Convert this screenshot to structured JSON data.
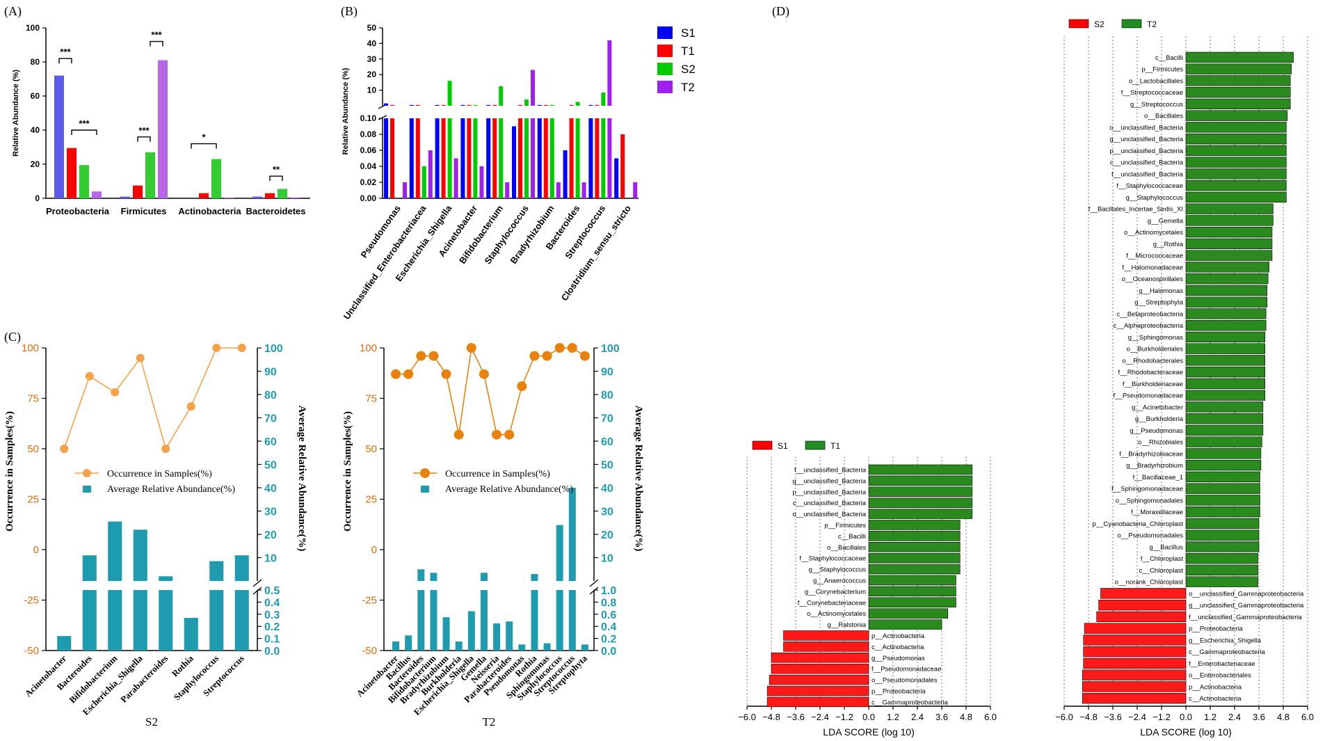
{
  "panels": {
    "a": "(A)",
    "b": "(B)",
    "c": "(C)",
    "d": "(D)"
  },
  "chart_data": [
    {
      "id": "A",
      "type": "bar",
      "ylabel": "Relative Abundance (%)",
      "ylim": [
        0,
        100
      ],
      "yticks": [
        0,
        20,
        40,
        60,
        80,
        100
      ],
      "categories": [
        "Proteobacteria",
        "Firmicutes",
        "Actinobacteria",
        "Bacteroidetes"
      ],
      "series": [
        {
          "name": "S1",
          "color": "#5b5bea",
          "values": [
            72,
            1,
            0,
            1
          ]
        },
        {
          "name": "T1",
          "color": "#ff0000",
          "values": [
            29.5,
            7.5,
            3,
            3
          ]
        },
        {
          "name": "S2",
          "color": "#33cc33",
          "values": [
            19.5,
            27,
            23,
            5.5
          ]
        },
        {
          "name": "T2",
          "color": "#b866e8",
          "values": [
            4,
            81,
            0.3,
            0.5
          ]
        }
      ],
      "significance": [
        {
          "category": "Proteobacteria",
          "pair": [
            "S1",
            "T1"
          ],
          "label": "***",
          "level": 82
        },
        {
          "category": "Proteobacteria",
          "pair": [
            "T1",
            "T2"
          ],
          "label": "***",
          "level": 40
        },
        {
          "category": "Firmicutes",
          "pair": [
            "T1",
            "S2"
          ],
          "label": "***",
          "level": 36
        },
        {
          "category": "Firmicutes",
          "pair": [
            "S2",
            "T2"
          ],
          "label": "***",
          "level": 92
        },
        {
          "category": "Actinobacteria",
          "pair": [
            "S1",
            "S2"
          ],
          "label": "*",
          "level": 32
        },
        {
          "category": "Bacteroidetes",
          "pair": [
            "T1",
            "S2"
          ],
          "label": "**",
          "level": 13
        }
      ]
    },
    {
      "id": "B",
      "type": "bar",
      "ylabel": "Relative Abundance (%)",
      "yticks_low": [
        0.0,
        0.02,
        0.04,
        0.06,
        0.08,
        0.1
      ],
      "yticks_high": [
        10,
        20,
        30,
        40,
        50
      ],
      "categories": [
        "Pseudomonas",
        "Unclassified_Enterobacteriacea",
        "Escherichia_Shigella",
        "Acinetobacter",
        "Bifidobacterium",
        "Staphylococcus",
        "Bradyrhizobium",
        "Bacteroides",
        "Streptococcus",
        "Clostridium_sensu_stricto"
      ],
      "legend": [
        "S1",
        "T1",
        "S2",
        "T2"
      ],
      "series": [
        {
          "name": "S1",
          "color": "#0000ff",
          "values": [
            1.5,
            0.5,
            0.5,
            0.5,
            0.5,
            0.09,
            0.5,
            0.06,
            0.5,
            0.05
          ]
        },
        {
          "name": "T1",
          "color": "#ff0000",
          "values": [
            0.5,
            0.5,
            0.5,
            0.5,
            0.5,
            0.5,
            0.5,
            0.5,
            0.5,
            0.08
          ]
        },
        {
          "name": "S2",
          "color": "#00cc00",
          "values": [
            0,
            0.04,
            16,
            0.5,
            12.5,
            4,
            0.5,
            2.5,
            8.5,
            0
          ]
        },
        {
          "name": "T2",
          "color": "#a020f0",
          "values": [
            0.02,
            0.06,
            0.05,
            0.04,
            0.02,
            23,
            0.02,
            0.02,
            42,
            0.02
          ]
        }
      ]
    },
    {
      "id": "C-S2",
      "type": "bar+line",
      "title": "S2",
      "ylabel_left": "Occurrence in Samples(%)",
      "ylabel_right": "Average Relative Abundance(%)",
      "left_ticks": [
        "100",
        "75",
        "50",
        "25",
        "0",
        "-25",
        "-50"
      ],
      "right_ticks_high": [
        "100",
        "90",
        "80",
        "70",
        "60",
        "50",
        "40",
        "30",
        "20",
        "10"
      ],
      "right_ticks_low": [
        "0.5",
        "0.4",
        "0.3",
        "0.2",
        "0.1",
        "0.0"
      ],
      "legend": [
        "Occurrence in Samples(%)",
        "Average Relative Abundance(%)"
      ],
      "categories": [
        "Acinetobacter",
        "Bacteroides",
        "Bifidobacterium",
        "Escherichia_Shigella",
        "Parabacteroides",
        "Rothia",
        "Staphylococcus",
        "Streptococcus"
      ],
      "occurrence": [
        50,
        86,
        78,
        95,
        50,
        71,
        100,
        100
      ],
      "abundance": [
        0.12,
        11,
        25.5,
        22,
        2,
        0.27,
        8.5,
        11
      ]
    },
    {
      "id": "C-T2",
      "type": "bar+line",
      "title": "T2",
      "ylabel_left": "Occurrence in Samples(%)",
      "ylabel_right": "Average Relative Abundance(%)",
      "left_ticks": [
        "100",
        "75",
        "50",
        "25",
        "0",
        "-25",
        "-50"
      ],
      "right_ticks_high": [
        "100",
        "90",
        "80",
        "70",
        "60",
        "50",
        "40",
        "30",
        "20",
        "10"
      ],
      "right_ticks_low": [
        "1.0",
        "0.8",
        "0.6",
        "0.4",
        "0.2",
        "0.0"
      ],
      "legend": [
        "Occurrence in Samples(%)",
        "Average Relative Abundance(%)"
      ],
      "categories": [
        "Acinetobacter",
        "Bacillus",
        "Bacteroides",
        "Bifidobacterium",
        "Bradyrhizobium",
        "Burkholderia",
        "Escherichia_Shigella",
        "Gemella",
        "Neisseria",
        "Parabacteroides",
        "Pseudomonas",
        "Rothia",
        "Sphingomonas",
        "Staphylococcus",
        "Streptococcus",
        "Streptophyta"
      ],
      "occurrence": [
        87,
        87,
        96,
        96,
        87,
        57,
        100,
        87,
        57,
        57,
        81,
        96,
        96,
        100,
        100,
        96
      ],
      "abundance": [
        0.15,
        0.25,
        5,
        3.5,
        0.55,
        0.15,
        0.65,
        3.5,
        0.45,
        0.48,
        0.1,
        3,
        0.12,
        24,
        40,
        0.1
      ]
    },
    {
      "id": "D-S1T1",
      "type": "hbar",
      "xlabel": "LDA SCORE (log 10)",
      "xlim": [
        -6,
        6
      ],
      "xticks": [
        "−6.0",
        "−4.8",
        "−3.6",
        "−2.4",
        "−1.2",
        "0.0",
        "1.2",
        "2.4",
        "3.6",
        "4.8",
        "6.0"
      ],
      "legend": [
        {
          "name": "S1",
          "color": "#ff0000"
        },
        {
          "name": "T1",
          "color": "#228b22"
        }
      ],
      "labels": [
        "f__unclassified_Bacteria",
        "g__unclassified_Bacteria",
        "p__unclassified_Bacteria",
        "c__unclassified_Bacteria",
        "o__unclassified_Bacteria",
        "p__Firmicutes",
        "c__Bacilli",
        "o__Bacillales",
        "f__Staphylococcaceae",
        "g__Staphylococcus",
        "g__Anaerococcus",
        "g__Corynebacterium",
        "f__Corynebacteriaceae",
        "o__Actinomycetales",
        "g__Ralstonia",
        "p__Actinobacteria",
        "c__Actinobacteria",
        "g__Pseudomonas",
        "f__Pseudomonadaceae",
        "o__Pseudomonadales",
        "p__Proteobacteria",
        "c__Gammaproteobacteria"
      ],
      "values": [
        5.1,
        5.1,
        5.1,
        5.1,
        5.1,
        4.5,
        4.5,
        4.5,
        4.5,
        4.5,
        4.3,
        4.3,
        4.3,
        3.9,
        3.6,
        -4.2,
        -4.2,
        -4.8,
        -4.8,
        -4.9,
        -5.0,
        -5.0
      ]
    },
    {
      "id": "D-S2T2",
      "type": "hbar",
      "xlabel": "LDA SCORE (log 10)",
      "xlim": [
        -6,
        6
      ],
      "xticks": [
        "−6.0",
        "−4.8",
        "−3.6",
        "−2.4",
        "−1.2",
        "0.0",
        "1.2",
        "2.4",
        "3.6",
        "4.8",
        "6.0"
      ],
      "legend": [
        {
          "name": "S2",
          "color": "#ff0000"
        },
        {
          "name": "T2",
          "color": "#228b22"
        }
      ],
      "labels": [
        "c__Bacilli",
        "p__Firmicutes",
        "o__Lactobacillales",
        "f__Streptococcaceae",
        "g__Streptococcus",
        "o__Bacillales",
        "o__unclassified_Bacteria",
        "g__unclassified_Bacteria",
        "p__unclassified_Bacteria",
        "c__unclassified_Bacteria",
        "f__unclassified_Bacteria",
        "f__Staphylococcaceae",
        "g__Staphylococcus",
        "f__Bacillales_Incertae_Sedis_XI",
        "g__Gemella",
        "o__Actinomycetales",
        "g__Rothia",
        "f__Micrococcaceae",
        "f__Halomonadaceae",
        "o__Oceanospirillales",
        "g__Halomonas",
        "g__Streptophyta",
        "c__Betaproteobacteria",
        "c__Alphaproteobacteria",
        "g__Sphingomonas",
        "o__Burkholderiales",
        "o__Rhodobacterales",
        "f__Rhodobacteraceae",
        "f__Burkholderiaceae",
        "f__Pseudomonadaceae",
        "g__Acinetobacter",
        "g__Burkholderia",
        "g__Pseudomonas",
        "o__Rhizobiales",
        "f__Bradyrhizobiaceae",
        "g__Bradyrhizobium",
        "f__Bacillaceae_1",
        "f__Sphingomonadaceae",
        "o__Sphingomonadales",
        "f__Moraxellaceae",
        "p__Cyanobacteria_Chloroplast",
        "o__Pseudomonadales",
        "g__Bacillus",
        "f__Chloroplast",
        "c__Chloroplast",
        "o__norank_Chloroplast",
        "o__unclassified_Gammaproteobacteria",
        "g__unclassified_Gammaproteobacteria",
        "f__unclassified_Gammaproteobacteria",
        "p__Proteobacteria",
        "g__Escherichia_Shigella",
        "c__Gammaproteobacteria",
        "f__Enterobacteriaceae",
        "o__Enterobacteriales",
        "p__Actinobacteria",
        "c__Actinobacteria"
      ],
      "values": [
        5.3,
        5.2,
        5.15,
        5.15,
        5.15,
        5.0,
        4.95,
        4.95,
        4.95,
        4.95,
        4.95,
        4.95,
        4.95,
        4.3,
        4.3,
        4.25,
        4.25,
        4.25,
        4.1,
        4.05,
        4.0,
        4.0,
        3.95,
        3.95,
        3.9,
        3.9,
        3.9,
        3.9,
        3.9,
        3.9,
        3.8,
        3.8,
        3.8,
        3.75,
        3.7,
        3.7,
        3.65,
        3.65,
        3.65,
        3.65,
        3.6,
        3.6,
        3.6,
        3.55,
        3.55,
        3.55,
        -4.2,
        -4.3,
        -4.4,
        -5.0,
        -5.05,
        -5.05,
        -5.05,
        -5.1,
        -5.1,
        -5.1
      ]
    }
  ]
}
